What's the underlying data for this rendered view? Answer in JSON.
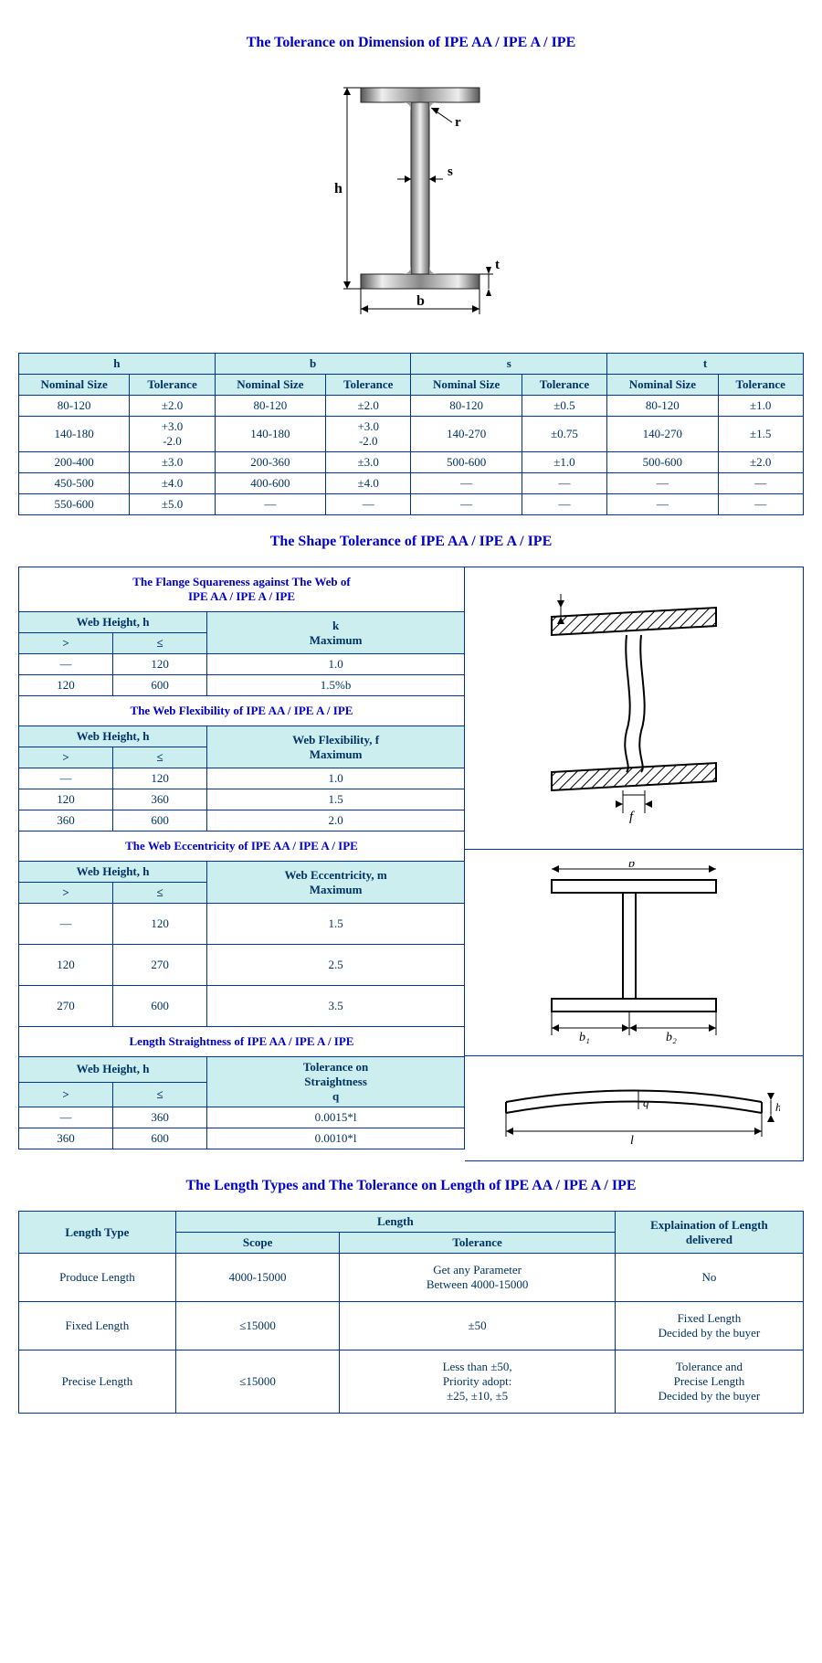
{
  "colors": {
    "border": "#003399",
    "hdr_bg": "#cceeee",
    "heading": "#0000cc",
    "text": "#003366",
    "bg": "#ffffff"
  },
  "font": {
    "family": "Times New Roman",
    "size_heading": 16,
    "size_body": 13
  },
  "title1": "The Tolerance on Dimension of IPE AA / IPE A / IPE",
  "diagram_labels": {
    "h": "h",
    "b": "b",
    "s": "s",
    "t": "t",
    "r": "r"
  },
  "dim_table": {
    "group_headers": [
      "h",
      "b",
      "s",
      "t"
    ],
    "sub_headers": [
      "Nominal Size",
      "Tolerance",
      "Nominal Size",
      "Tolerance",
      "Nominal Size",
      "Tolerance",
      "Nominal Size",
      "Tolerance"
    ],
    "rows": [
      [
        "80-120",
        "±2.0",
        "80-120",
        "±2.0",
        "80-120",
        "±0.5",
        "80-120",
        "±1.0"
      ],
      [
        "140-180",
        "+3.0\n-2.0",
        "140-180",
        "+3.0\n-2.0",
        "140-270",
        "±0.75",
        "140-270",
        "±1.5"
      ],
      [
        "200-400",
        "±3.0",
        "200-360",
        "±3.0",
        "500-600",
        "±1.0",
        "500-600",
        "±2.0"
      ],
      [
        "450-500",
        "±4.0",
        "400-600",
        "±4.0",
        "—",
        "—",
        "—",
        "—"
      ],
      [
        "550-600",
        "±5.0",
        "—",
        "—",
        "—",
        "—",
        "—",
        "—"
      ]
    ]
  },
  "title2": "The Shape Tolerance of IPE AA / IPE A / IPE",
  "flange": {
    "title": "The Flange Squareness against The Web of\nIPE AA / IPE A / IPE",
    "col_group": "Web Height, h",
    "col_val": "k\nMaximum",
    "sub": [
      ">",
      "≤"
    ],
    "rows": [
      [
        "—",
        "120",
        "1.0"
      ],
      [
        "120",
        "600",
        "1.5%b"
      ]
    ]
  },
  "flex": {
    "title": "The Web Flexibility of IPE AA / IPE A / IPE",
    "col_group": "Web Height, h",
    "col_val": "Web Flexibility, f\nMaximum",
    "sub": [
      ">",
      "≤"
    ],
    "rows": [
      [
        "—",
        "120",
        "1.0"
      ],
      [
        "120",
        "360",
        "1.5"
      ],
      [
        "360",
        "600",
        "2.0"
      ]
    ]
  },
  "ecc": {
    "title": "The Web Eccentricity of IPE AA / IPE A / IPE",
    "col_group": "Web Height, h",
    "col_val": "Web Eccentricity, m\nMaximum",
    "sub": [
      ">",
      "≤"
    ],
    "rows": [
      [
        "—",
        "120",
        "1.5"
      ],
      [
        "120",
        "270",
        "2.5"
      ],
      [
        "270",
        "600",
        "3.5"
      ]
    ]
  },
  "straight": {
    "title": "Length Straightness of IPE AA / IPE A / IPE",
    "col_group": "Web Height, h",
    "col_val": "Tolerance on\nStraightness\nq",
    "sub": [
      ">",
      "≤"
    ],
    "rows": [
      [
        "—",
        "360",
        "0.0015*l"
      ],
      [
        "360",
        "600",
        "0.0010*l"
      ]
    ]
  },
  "title3": "The Length Types and The Tolerance on Length of IPE AA / IPE A / IPE",
  "len_table": {
    "col1": "Length Type",
    "col_group": "Length",
    "col2a": "Scope",
    "col2b": "Tolerance",
    "col3": "Explaination of Length\ndelivered",
    "rows": [
      [
        "Produce Length",
        "4000-15000",
        "Get any Parameter\nBetween 4000-15000",
        "No"
      ],
      [
        "Fixed Length",
        "≤15000",
        "±50",
        "Fixed Length\nDecided by the buyer"
      ],
      [
        "Precise Length",
        "≤15000",
        "Less than ±50,\nPriority adopt:\n±25, ±10, ±5",
        "Tolerance and\nPrecise Length\nDecided by the buyer"
      ]
    ]
  }
}
